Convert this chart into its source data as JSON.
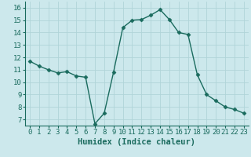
{
  "x": [
    0,
    1,
    2,
    3,
    4,
    5,
    6,
    7,
    8,
    9,
    10,
    11,
    12,
    13,
    14,
    15,
    16,
    17,
    18,
    19,
    20,
    21,
    22,
    23
  ],
  "y": [
    11.7,
    11.3,
    11.0,
    10.75,
    10.85,
    10.5,
    10.4,
    6.65,
    7.5,
    10.8,
    14.4,
    15.0,
    15.05,
    15.4,
    15.85,
    15.05,
    14.0,
    13.85,
    10.6,
    9.0,
    8.5,
    8.0,
    7.8,
    7.5
  ],
  "xlabel": "Humidex (Indice chaleur)",
  "xlim": [
    -0.5,
    23.5
  ],
  "ylim": [
    6.5,
    16.5
  ],
  "yticks": [
    7,
    8,
    9,
    10,
    11,
    12,
    13,
    14,
    15,
    16
  ],
  "xticks": [
    0,
    1,
    2,
    3,
    4,
    5,
    6,
    7,
    8,
    9,
    10,
    11,
    12,
    13,
    14,
    15,
    16,
    17,
    18,
    19,
    20,
    21,
    22,
    23
  ],
  "line_color": "#1a6b5e",
  "marker_size": 2.5,
  "bg_color": "#cce8ec",
  "grid_color": "#b0d4d8",
  "line_width": 1.0,
  "xlabel_fontsize": 7.5,
  "tick_fontsize": 6.5
}
